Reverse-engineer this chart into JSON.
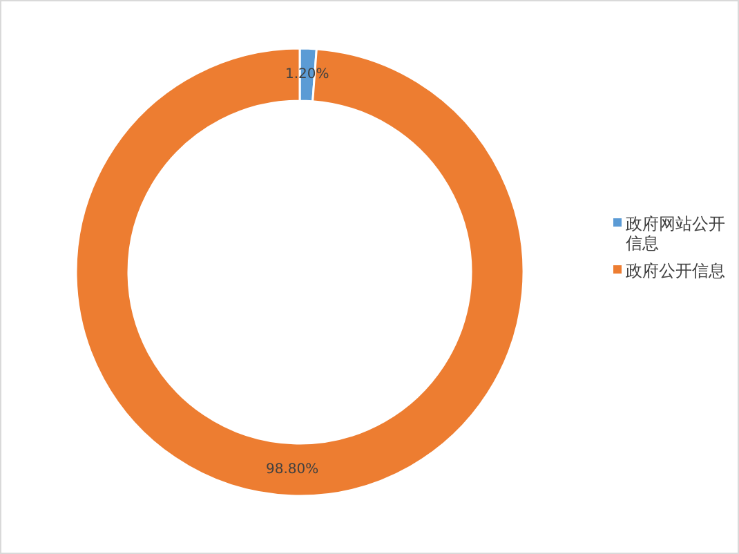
{
  "chart_data": {
    "type": "donut",
    "categories": [
      "政府网站公开信息",
      "政府公开信息"
    ],
    "values": [
      1.2,
      98.8
    ],
    "value_labels": [
      "1.20%",
      "98.80%"
    ],
    "colors": [
      "#5b9bd5",
      "#ed7d31"
    ],
    "legend": "right"
  }
}
